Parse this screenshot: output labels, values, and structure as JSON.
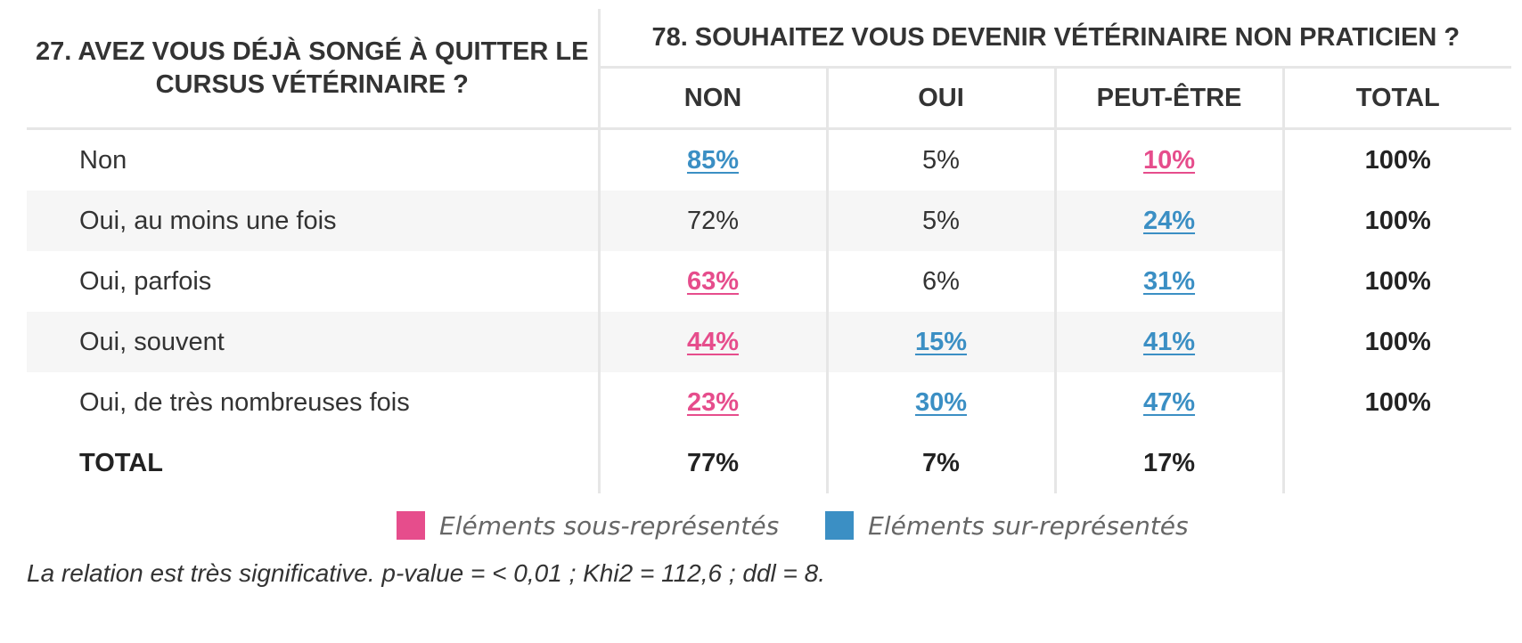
{
  "chart_data": {
    "type": "table",
    "row_header": "27. Avez vous déjà songé à quitter le cursus vétérinaire ?",
    "column_group_header": "78. Souhaitez vous devenir vétérinaire non praticien ?",
    "columns": [
      "Non",
      "Oui",
      "Peut-être",
      "Total"
    ],
    "rows": [
      {
        "label": "Non",
        "cells": [
          {
            "text": "85%",
            "value": 85,
            "flag": "over"
          },
          {
            "text": "5%",
            "value": 5,
            "flag": "none"
          },
          {
            "text": "10%",
            "value": 10,
            "flag": "under"
          },
          {
            "text": "100%",
            "value": 100,
            "flag": "total"
          }
        ]
      },
      {
        "label": "Oui, au moins une fois",
        "cells": [
          {
            "text": "72%",
            "value": 72,
            "flag": "none"
          },
          {
            "text": "5%",
            "value": 5,
            "flag": "none"
          },
          {
            "text": "24%",
            "value": 24,
            "flag": "over"
          },
          {
            "text": "100%",
            "value": 100,
            "flag": "total"
          }
        ]
      },
      {
        "label": "Oui, parfois",
        "cells": [
          {
            "text": "63%",
            "value": 63,
            "flag": "under"
          },
          {
            "text": "6%",
            "value": 6,
            "flag": "none"
          },
          {
            "text": "31%",
            "value": 31,
            "flag": "over"
          },
          {
            "text": "100%",
            "value": 100,
            "flag": "total"
          }
        ]
      },
      {
        "label": "Oui, souvent",
        "cells": [
          {
            "text": "44%",
            "value": 44,
            "flag": "under"
          },
          {
            "text": "15%",
            "value": 15,
            "flag": "over"
          },
          {
            "text": "41%",
            "value": 41,
            "flag": "over"
          },
          {
            "text": "100%",
            "value": 100,
            "flag": "total"
          }
        ]
      },
      {
        "label": "Oui, de très nombreuses fois",
        "cells": [
          {
            "text": "23%",
            "value": 23,
            "flag": "under"
          },
          {
            "text": "30%",
            "value": 30,
            "flag": "over"
          },
          {
            "text": "47%",
            "value": 47,
            "flag": "over"
          },
          {
            "text": "100%",
            "value": 100,
            "flag": "total"
          }
        ]
      }
    ],
    "total_row": {
      "label": "TOTAL",
      "cells": [
        {
          "text": "77%",
          "value": 77
        },
        {
          "text": "7%",
          "value": 7
        },
        {
          "text": "17%",
          "value": 17
        }
      ]
    },
    "legend": [
      {
        "label": "Eléments sous-représentés",
        "color": "#e64d8c",
        "key": "under"
      },
      {
        "label": "Eléments sur-représentés",
        "color": "#3b8fc4",
        "key": "over"
      }
    ],
    "note": "La relation est très significative. p-value = < 0,01 ; Khi2 = 112,6 ; ddl = 8."
  },
  "colors": {
    "under": "#e64d8c",
    "over": "#3b8fc4",
    "text": "#333333",
    "grid": "#e6e6e6",
    "shade": "#f6f6f6"
  }
}
